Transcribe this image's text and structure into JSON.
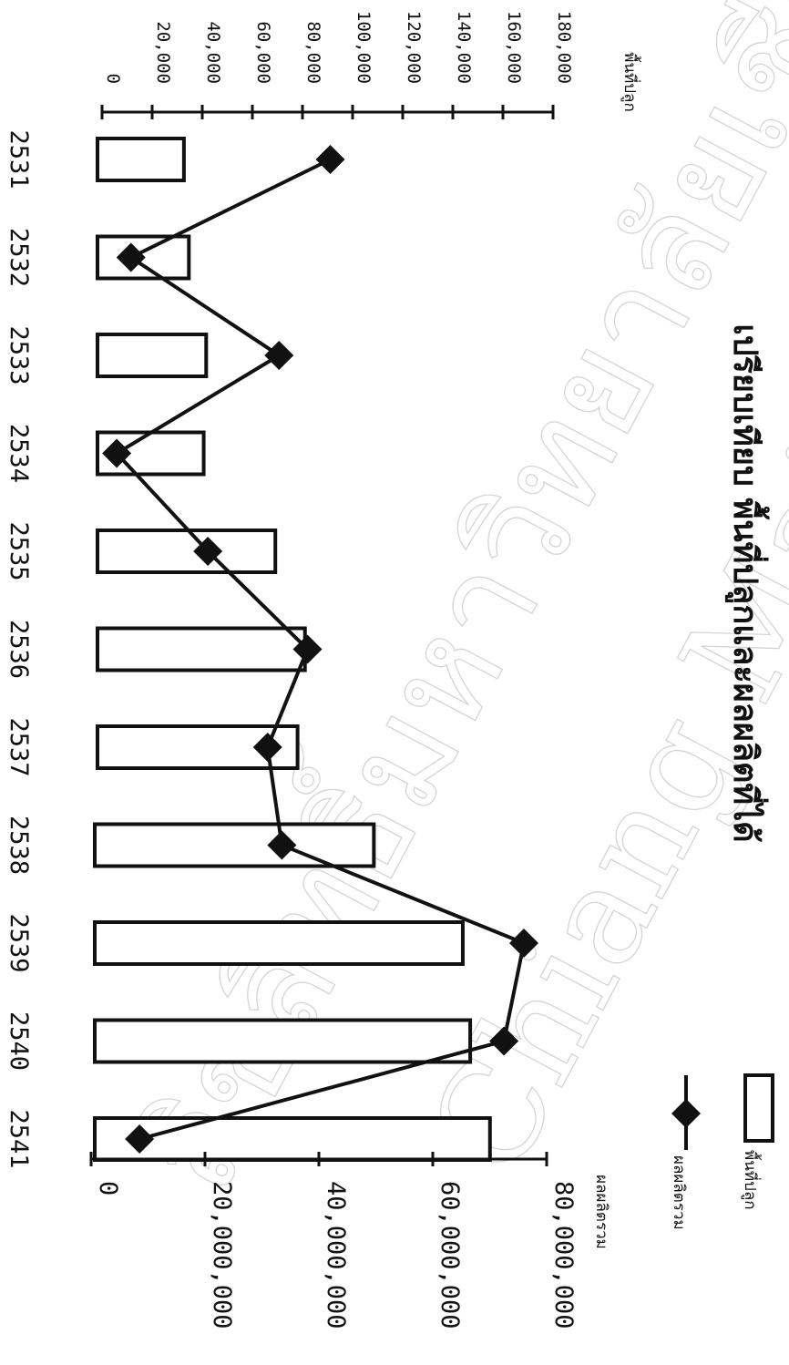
{
  "chart_data": {
    "type": "bar",
    "title": "เปรียบเทียบ พื้นที่ปลูกและผลผลิตที่ได้",
    "categories": [
      "2531",
      "2532",
      "2533",
      "2534",
      "2535",
      "2536",
      "2537",
      "2538",
      "2539",
      "2540",
      "2541"
    ],
    "series": [
      {
        "name": "พื้นที่ปลูก",
        "kind": "bar",
        "axis": "left",
        "values": [
          35000,
          37000,
          44000,
          43000,
          72000,
          84000,
          81000,
          113000,
          149000,
          152000,
          160000
        ]
      },
      {
        "name": "ผลผลิตรวม",
        "kind": "line",
        "axis": "right",
        "values": [
          42000000,
          7000000,
          33000000,
          4500000,
          20500000,
          38000000,
          31000000,
          33500000,
          76000000,
          72500000,
          8500000
        ]
      }
    ],
    "left_axis": {
      "label": "พื้นที่ปลูก",
      "ylim": [
        0,
        180000
      ],
      "ticks": [
        "0",
        "20,000",
        "40,000",
        "60,000",
        "80,000",
        "100,000",
        "120,000",
        "140,000",
        "160,000",
        "180,000"
      ]
    },
    "right_axis": {
      "label": "ผลผลิตรวม",
      "ylim": [
        0,
        80000000
      ],
      "ticks": [
        "0",
        "20,000,000",
        "40,000,000",
        "60,000,000",
        "80,000,000"
      ]
    },
    "legend": {
      "placement": "right"
    },
    "watermark_text": "Chiang Mai University",
    "watermark_text_thai": "ลิขสิทธิ์มหาวิทยาลัยเชียงใหม่",
    "colors": {
      "bar_fill": "#ffffff",
      "stroke": "#111111",
      "marker": "#111111"
    }
  }
}
